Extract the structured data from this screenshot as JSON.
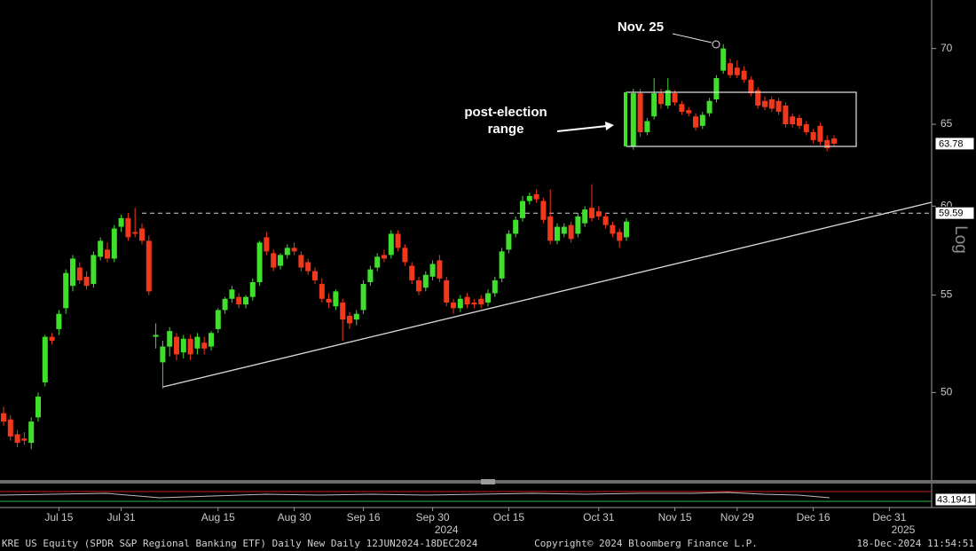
{
  "chart_data": {
    "type": "candlestick",
    "scale": "log",
    "y_axis_label": "Log",
    "ylim": [
      45.9,
      73.4
    ],
    "yticks": [
      50,
      55,
      60,
      65,
      70
    ],
    "up_color": "#3ee02c",
    "down_color": "#f2381c",
    "reference_line": 59.59,
    "last_price": 63.78,
    "indicator_last": 43.1941,
    "annotations": [
      "Nov. 25",
      "post-election",
      "range"
    ],
    "source_note": "KRE US Equity (SPDR S&P Regional Banking ETF) Daily New  Daily 12JUN2024-18DEC2024",
    "copyright": "Copyright© 2024 Bloomberg Finance L.P.",
    "timestamp": "18-Dec-2024 11:54:51",
    "categories": [
      null,
      null,
      null,
      null,
      null,
      null,
      null,
      null,
      "Jul 15",
      null,
      null,
      null,
      null,
      null,
      null,
      null,
      null,
      "Jul 31",
      null,
      null,
      null,
      null,
      null,
      null,
      null,
      null,
      null,
      null,
      null,
      null,
      null,
      "Aug 15",
      null,
      null,
      null,
      null,
      null,
      null,
      null,
      null,
      null,
      null,
      "Aug 30",
      null,
      null,
      null,
      null,
      null,
      null,
      null,
      null,
      null,
      "Sep 16",
      null,
      null,
      null,
      null,
      null,
      null,
      null,
      null,
      null,
      "Sep 30",
      null,
      null,
      null,
      null,
      null,
      null,
      null,
      null,
      null,
      null,
      "Oct 15",
      null,
      null,
      null,
      null,
      null,
      null,
      null,
      null,
      null,
      null,
      null,
      null,
      "Oct 31",
      null,
      null,
      null,
      null,
      null,
      null,
      null,
      null,
      null,
      null,
      "Nov 15",
      null,
      null,
      null,
      null,
      null,
      null,
      null,
      null,
      "Nov 29",
      null,
      null,
      null,
      null,
      null,
      null,
      null,
      null,
      null,
      null,
      "Dec 16",
      null,
      null,
      null,
      null,
      null,
      null,
      null,
      null,
      null,
      null,
      "Dec 31",
      null,
      null,
      null,
      null,
      null
    ],
    "category_years": [
      null,
      null,
      null,
      null,
      null,
      null,
      null,
      null,
      null,
      null,
      null,
      null,
      null,
      null,
      null,
      null,
      null,
      null,
      null,
      null,
      null,
      null,
      null,
      null,
      null,
      null,
      null,
      null,
      null,
      null,
      null,
      null,
      null,
      null,
      null,
      null,
      null,
      null,
      null,
      null,
      null,
      null,
      null,
      null,
      null,
      null,
      null,
      null,
      null,
      null,
      null,
      null,
      null,
      null,
      null,
      null,
      null,
      null,
      null,
      null,
      null,
      null,
      null,
      null,
      "2024",
      null,
      null,
      null,
      null,
      null,
      null,
      null,
      null,
      null,
      null,
      null,
      null,
      null,
      null,
      null,
      null,
      null,
      null,
      null,
      null,
      null,
      null,
      null,
      null,
      null,
      null,
      null,
      null,
      null,
      null,
      null,
      null,
      null,
      null,
      null,
      null,
      null,
      null,
      null,
      null,
      null,
      null,
      null,
      null,
      null,
      null,
      null,
      null,
      null,
      null,
      null,
      null,
      null,
      null,
      null,
      null,
      null,
      null,
      null,
      null,
      null,
      null,
      null,
      null,
      null,
      "2025",
      null,
      null,
      null
    ],
    "open": [
      49.0,
      48.7,
      48.0,
      47.8,
      47.6,
      48.8,
      50.5,
      52.8,
      53.2,
      54.3,
      55.5,
      56.5,
      56.0,
      55.6,
      57.1,
      57.5,
      57.0,
      58.8,
      59.3,
      58.5,
      58.7,
      58.0,
      52.8,
      51.5,
      52.3,
      52.8,
      52.0,
      52.7,
      52.2,
      52.5,
      52.3,
      53.2,
      54.2,
      54.8,
      54.9,
      54.5,
      54.9,
      55.7,
      58.2,
      57.3,
      56.6,
      57.2,
      57.6,
      57.2,
      56.8,
      56.3,
      55.6,
      54.8,
      54.4,
      54.6,
      53.9,
      53.7,
      54.2,
      55.7,
      56.5,
      57.2,
      57.2,
      58.4,
      57.6,
      56.6,
      55.8,
      55.4,
      56.0,
      56.9,
      55.8,
      54.6,
      54.3,
      54.9,
      54.6,
      54.8,
      54.6,
      55.1,
      55.9,
      57.5,
      58.4,
      59.3,
      60.3,
      60.7,
      60.3,
      59.4,
      58.0,
      58.4,
      58.9,
      58.4,
      59.0,
      59.9,
      59.7,
      59.4,
      58.9,
      58.5,
      58.2,
      63.6,
      67.0,
      64.5,
      65.5,
      67.0,
      66.2,
      67.0,
      66.3,
      65.9,
      65.5,
      64.9,
      65.7,
      66.6,
      68.5,
      69.0,
      68.7,
      68.5,
      67.9,
      67.2,
      66.5,
      66.6,
      66.5,
      66.2,
      65.5,
      65.4,
      65.0,
      64.5,
      64.9,
      64.0,
      64.1,
      null,
      null,
      null,
      null,
      null,
      null,
      null,
      null,
      null,
      null,
      null,
      null,
      null
    ],
    "high": [
      49.3,
      48.9,
      48.2,
      48.1,
      48.8,
      50.0,
      52.9,
      53.0,
      54.2,
      56.4,
      57.2,
      56.8,
      56.3,
      57.4,
      58.2,
      57.9,
      58.9,
      59.5,
      59.6,
      59.9,
      59.0,
      58.3,
      53.5,
      52.6,
      53.3,
      53.0,
      52.9,
      52.9,
      53.0,
      52.8,
      53.1,
      54.3,
      54.9,
      55.5,
      55.1,
      55.0,
      55.9,
      58.0,
      58.5,
      57.5,
      57.3,
      57.8,
      57.9,
      57.4,
      57.0,
      56.5,
      55.9,
      55.1,
      55.3,
      54.8,
      54.1,
      54.2,
      55.8,
      56.6,
      57.3,
      57.5,
      58.6,
      58.6,
      57.8,
      56.8,
      56.0,
      56.3,
      56.9,
      57.2,
      56.0,
      54.8,
      55.0,
      55.1,
      54.8,
      55.0,
      55.3,
      56.0,
      57.6,
      58.6,
      59.4,
      60.6,
      60.8,
      61.0,
      60.5,
      61.0,
      59.0,
      59.0,
      59.1,
      59.6,
      60.0,
      61.3,
      60.0,
      59.6,
      59.1,
      58.7,
      59.3,
      67.3,
      67.3,
      65.4,
      68.0,
      67.3,
      68.0,
      67.2,
      66.5,
      66.1,
      65.7,
      65.8,
      66.7,
      68.2,
      70.3,
      69.3,
      69.2,
      68.8,
      68.1,
      67.4,
      66.8,
      66.8,
      66.7,
      66.4,
      65.7,
      65.6,
      65.2,
      64.7,
      65.1,
      64.3,
      64.3,
      null,
      null,
      null,
      null,
      null,
      null,
      null,
      null,
      null,
      null,
      null,
      null,
      null
    ],
    "low": [
      48.4,
      47.7,
      47.4,
      47.5,
      47.3,
      48.6,
      50.3,
      52.4,
      52.9,
      54.0,
      55.2,
      55.6,
      55.3,
      55.4,
      56.9,
      56.8,
      56.8,
      58.5,
      58.0,
      58.2,
      57.8,
      55.0,
      52.2,
      50.2,
      51.8,
      51.6,
      51.7,
      51.6,
      51.9,
      51.9,
      52.1,
      53.0,
      54.0,
      54.6,
      54.3,
      54.3,
      54.7,
      55.5,
      57.2,
      56.3,
      56.4,
      57.0,
      57.2,
      56.3,
      56.1,
      55.6,
      54.6,
      54.3,
      54.2,
      52.6,
      53.2,
      53.4,
      54.0,
      55.5,
      56.3,
      56.8,
      57.0,
      57.4,
      56.6,
      55.6,
      55.0,
      55.2,
      55.8,
      55.7,
      54.4,
      54.0,
      54.1,
      54.3,
      54.3,
      54.3,
      54.4,
      54.9,
      55.7,
      57.3,
      58.2,
      59.1,
      60.1,
      60.2,
      59.0,
      57.8,
      57.8,
      58.2,
      57.9,
      58.2,
      58.8,
      59.1,
      59.2,
      58.7,
      58.2,
      57.6,
      58.0,
      63.4,
      64.2,
      64.3,
      65.3,
      66.0,
      66.0,
      66.2,
      65.6,
      65.5,
      64.6,
      64.7,
      65.5,
      66.4,
      68.3,
      68.0,
      68.0,
      67.7,
      66.8,
      66.0,
      65.9,
      65.8,
      65.6,
      64.8,
      64.8,
      64.7,
      64.3,
      63.8,
      63.7,
      63.3,
      63.6,
      null,
      null,
      null,
      null,
      null,
      null,
      null,
      null,
      null,
      null,
      null,
      null,
      null
    ],
    "close": [
      48.6,
      47.9,
      47.6,
      47.7,
      48.6,
      49.8,
      52.8,
      52.6,
      54.0,
      56.2,
      57.0,
      55.8,
      55.5,
      57.2,
      58.0,
      57.0,
      58.7,
      59.3,
      58.2,
      58.4,
      58.0,
      55.2,
      52.9,
      52.3,
      53.1,
      51.9,
      52.7,
      51.9,
      52.8,
      52.2,
      53.0,
      54.2,
      54.8,
      55.3,
      54.5,
      54.9,
      55.7,
      57.9,
      57.4,
      56.5,
      57.2,
      57.6,
      57.4,
      56.5,
      56.3,
      55.8,
      54.8,
      54.6,
      55.2,
      53.7,
      53.5,
      54.0,
      55.6,
      56.4,
      57.1,
      57.0,
      58.4,
      57.6,
      56.8,
      55.8,
      55.2,
      56.1,
      56.7,
      55.9,
      54.6,
      54.3,
      54.8,
      54.5,
      54.5,
      54.5,
      55.1,
      55.8,
      57.4,
      58.4,
      59.2,
      60.3,
      60.6,
      60.4,
      59.2,
      58.0,
      58.8,
      58.8,
      58.1,
      59.4,
      59.8,
      59.3,
      59.4,
      58.9,
      58.4,
      58.0,
      59.1,
      67.0,
      64.5,
      65.2,
      67.0,
      66.3,
      67.2,
      66.4,
      65.8,
      65.7,
      64.8,
      65.6,
      66.5,
      68.0,
      70.0,
      68.2,
      68.2,
      67.9,
      67.0,
      66.2,
      66.1,
      66.0,
      65.8,
      65.0,
      65.0,
      64.9,
      64.5,
      64.0,
      63.9,
      63.5,
      63.78,
      null,
      null,
      null,
      null,
      null,
      null,
      null,
      null,
      null,
      null,
      null,
      null,
      null
    ]
  }
}
